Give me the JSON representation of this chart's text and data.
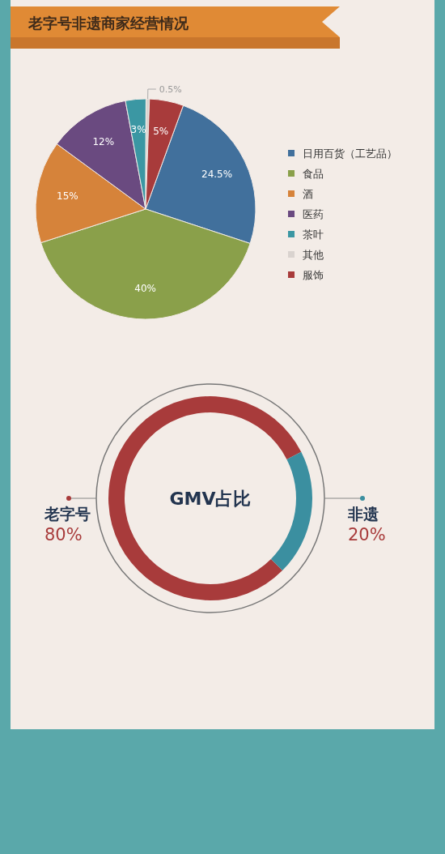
{
  "chart_data": [
    {
      "type": "pie",
      "title": "老字号非遗商家经营情况",
      "categories": [
        "日用百货（工艺品）",
        "食品",
        "酒",
        "医药",
        "茶叶",
        "其他",
        "服饰"
      ],
      "values": [
        24.5,
        40,
        15,
        12,
        3,
        0.5,
        5
      ],
      "colors": [
        "#41709c",
        "#8aa04a",
        "#d6833a",
        "#6a4a80",
        "#3b97a3",
        "#d9d3cf",
        "#a83b3b"
      ],
      "value_labels": [
        "24.5%",
        "40%",
        "15%",
        "12%",
        "3%",
        "0.5%",
        "5%"
      ],
      "legend": "right"
    },
    {
      "type": "donut",
      "title": "GMV占比",
      "categories": [
        "老字号",
        "非遗"
      ],
      "values": [
        80,
        20
      ],
      "colors": [
        "#a83b3b",
        "#3b8fa0"
      ],
      "value_labels": [
        "80%",
        "20%"
      ],
      "legend": "right"
    }
  ]
}
